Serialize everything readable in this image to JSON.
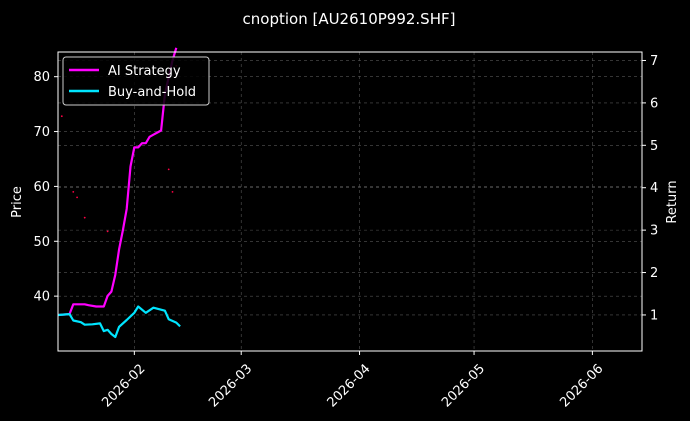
{
  "chart_data": {
    "type": "line",
    "title": "cnoption [AU2610P992.SHF]",
    "xlabel": "",
    "ylabel": "Price",
    "ylabel_right": "Return",
    "xlim": [
      "2026-01-12",
      "2026-06-14"
    ],
    "ylim": [
      30.0,
      84.5
    ],
    "ylim_right": [
      0.15,
      7.2
    ],
    "grid": true,
    "legend_position": "top-left",
    "background": "#000000",
    "x_ticks": [
      {
        "date": "2026-02-01",
        "label": "2026-02"
      },
      {
        "date": "2026-03-01",
        "label": "2026-03"
      },
      {
        "date": "2026-04-01",
        "label": "2026-04"
      },
      {
        "date": "2026-05-01",
        "label": "2026-05"
      },
      {
        "date": "2026-06-01",
        "label": "2026-06"
      }
    ],
    "y_ticks_left": [
      {
        "value": 40,
        "label": "40"
      },
      {
        "value": 50,
        "label": "50"
      },
      {
        "value": 60,
        "label": "60"
      },
      {
        "value": 70,
        "label": "70"
      },
      {
        "value": 80,
        "label": "80"
      }
    ],
    "y_ticks_right": [
      {
        "value": 1,
        "label": "1"
      },
      {
        "value": 2,
        "label": "2"
      },
      {
        "value": 3,
        "label": "3"
      },
      {
        "value": 4,
        "label": "4"
      },
      {
        "value": 5,
        "label": "5"
      },
      {
        "value": 6,
        "label": "6"
      },
      {
        "value": 7,
        "label": "7"
      }
    ],
    "series": [
      {
        "name": "AI Strategy",
        "axis": "right",
        "color": "#ff00ff",
        "points": [
          [
            "2026-01-12",
            1.0
          ],
          [
            "2026-01-15",
            1.02
          ],
          [
            "2026-01-16",
            1.25
          ],
          [
            "2026-01-19",
            1.25
          ],
          [
            "2026-01-20",
            1.23
          ],
          [
            "2026-01-22",
            1.2
          ],
          [
            "2026-01-24",
            1.2
          ],
          [
            "2026-01-25",
            1.45
          ],
          [
            "2026-01-26",
            1.55
          ],
          [
            "2026-01-27",
            1.95
          ],
          [
            "2026-01-28",
            2.55
          ],
          [
            "2026-01-29",
            3.0
          ],
          [
            "2026-01-30",
            3.5
          ],
          [
            "2026-01-31",
            4.5
          ],
          [
            "2026-02-01",
            4.95
          ],
          [
            "2026-02-02",
            4.95
          ],
          [
            "2026-02-03",
            5.05
          ],
          [
            "2026-02-04",
            5.05
          ],
          [
            "2026-02-05",
            5.2
          ],
          [
            "2026-02-06",
            5.25
          ],
          [
            "2026-02-07",
            5.3
          ],
          [
            "2026-02-08",
            5.35
          ],
          [
            "2026-02-09",
            6.2
          ],
          [
            "2026-02-10",
            6.6
          ],
          [
            "2026-02-11",
            7.0
          ],
          [
            "2026-02-12",
            7.3
          ]
        ]
      },
      {
        "name": "Buy-and-Hold",
        "axis": "right",
        "color": "#00e5ff",
        "points": [
          [
            "2026-01-12",
            1.0
          ],
          [
            "2026-01-15",
            1.02
          ],
          [
            "2026-01-16",
            0.87
          ],
          [
            "2026-01-18",
            0.83
          ],
          [
            "2026-01-19",
            0.77
          ],
          [
            "2026-01-21",
            0.78
          ],
          [
            "2026-01-23",
            0.8
          ],
          [
            "2026-01-24",
            0.62
          ],
          [
            "2026-01-25",
            0.65
          ],
          [
            "2026-01-26",
            0.55
          ],
          [
            "2026-01-27",
            0.48
          ],
          [
            "2026-01-28",
            0.72
          ],
          [
            "2026-01-30",
            0.88
          ],
          [
            "2026-02-01",
            1.05
          ],
          [
            "2026-02-02",
            1.2
          ],
          [
            "2026-02-04",
            1.05
          ],
          [
            "2026-02-06",
            1.17
          ],
          [
            "2026-02-09",
            1.1
          ],
          [
            "2026-02-10",
            0.9
          ],
          [
            "2026-02-12",
            0.82
          ],
          [
            "2026-02-13",
            0.73
          ]
        ]
      }
    ],
    "markers": {
      "color": "#ff0044",
      "axis": "left",
      "points": [
        [
          "2026-01-13",
          72.8
        ],
        [
          "2026-01-16",
          59.0
        ],
        [
          "2026-01-17",
          58.0
        ],
        [
          "2026-01-19",
          54.3
        ],
        [
          "2026-01-25",
          51.8
        ],
        [
          "2026-02-10",
          63.1
        ],
        [
          "2026-02-11",
          59.0
        ],
        [
          "2026-02-12",
          82.0
        ]
      ]
    }
  }
}
